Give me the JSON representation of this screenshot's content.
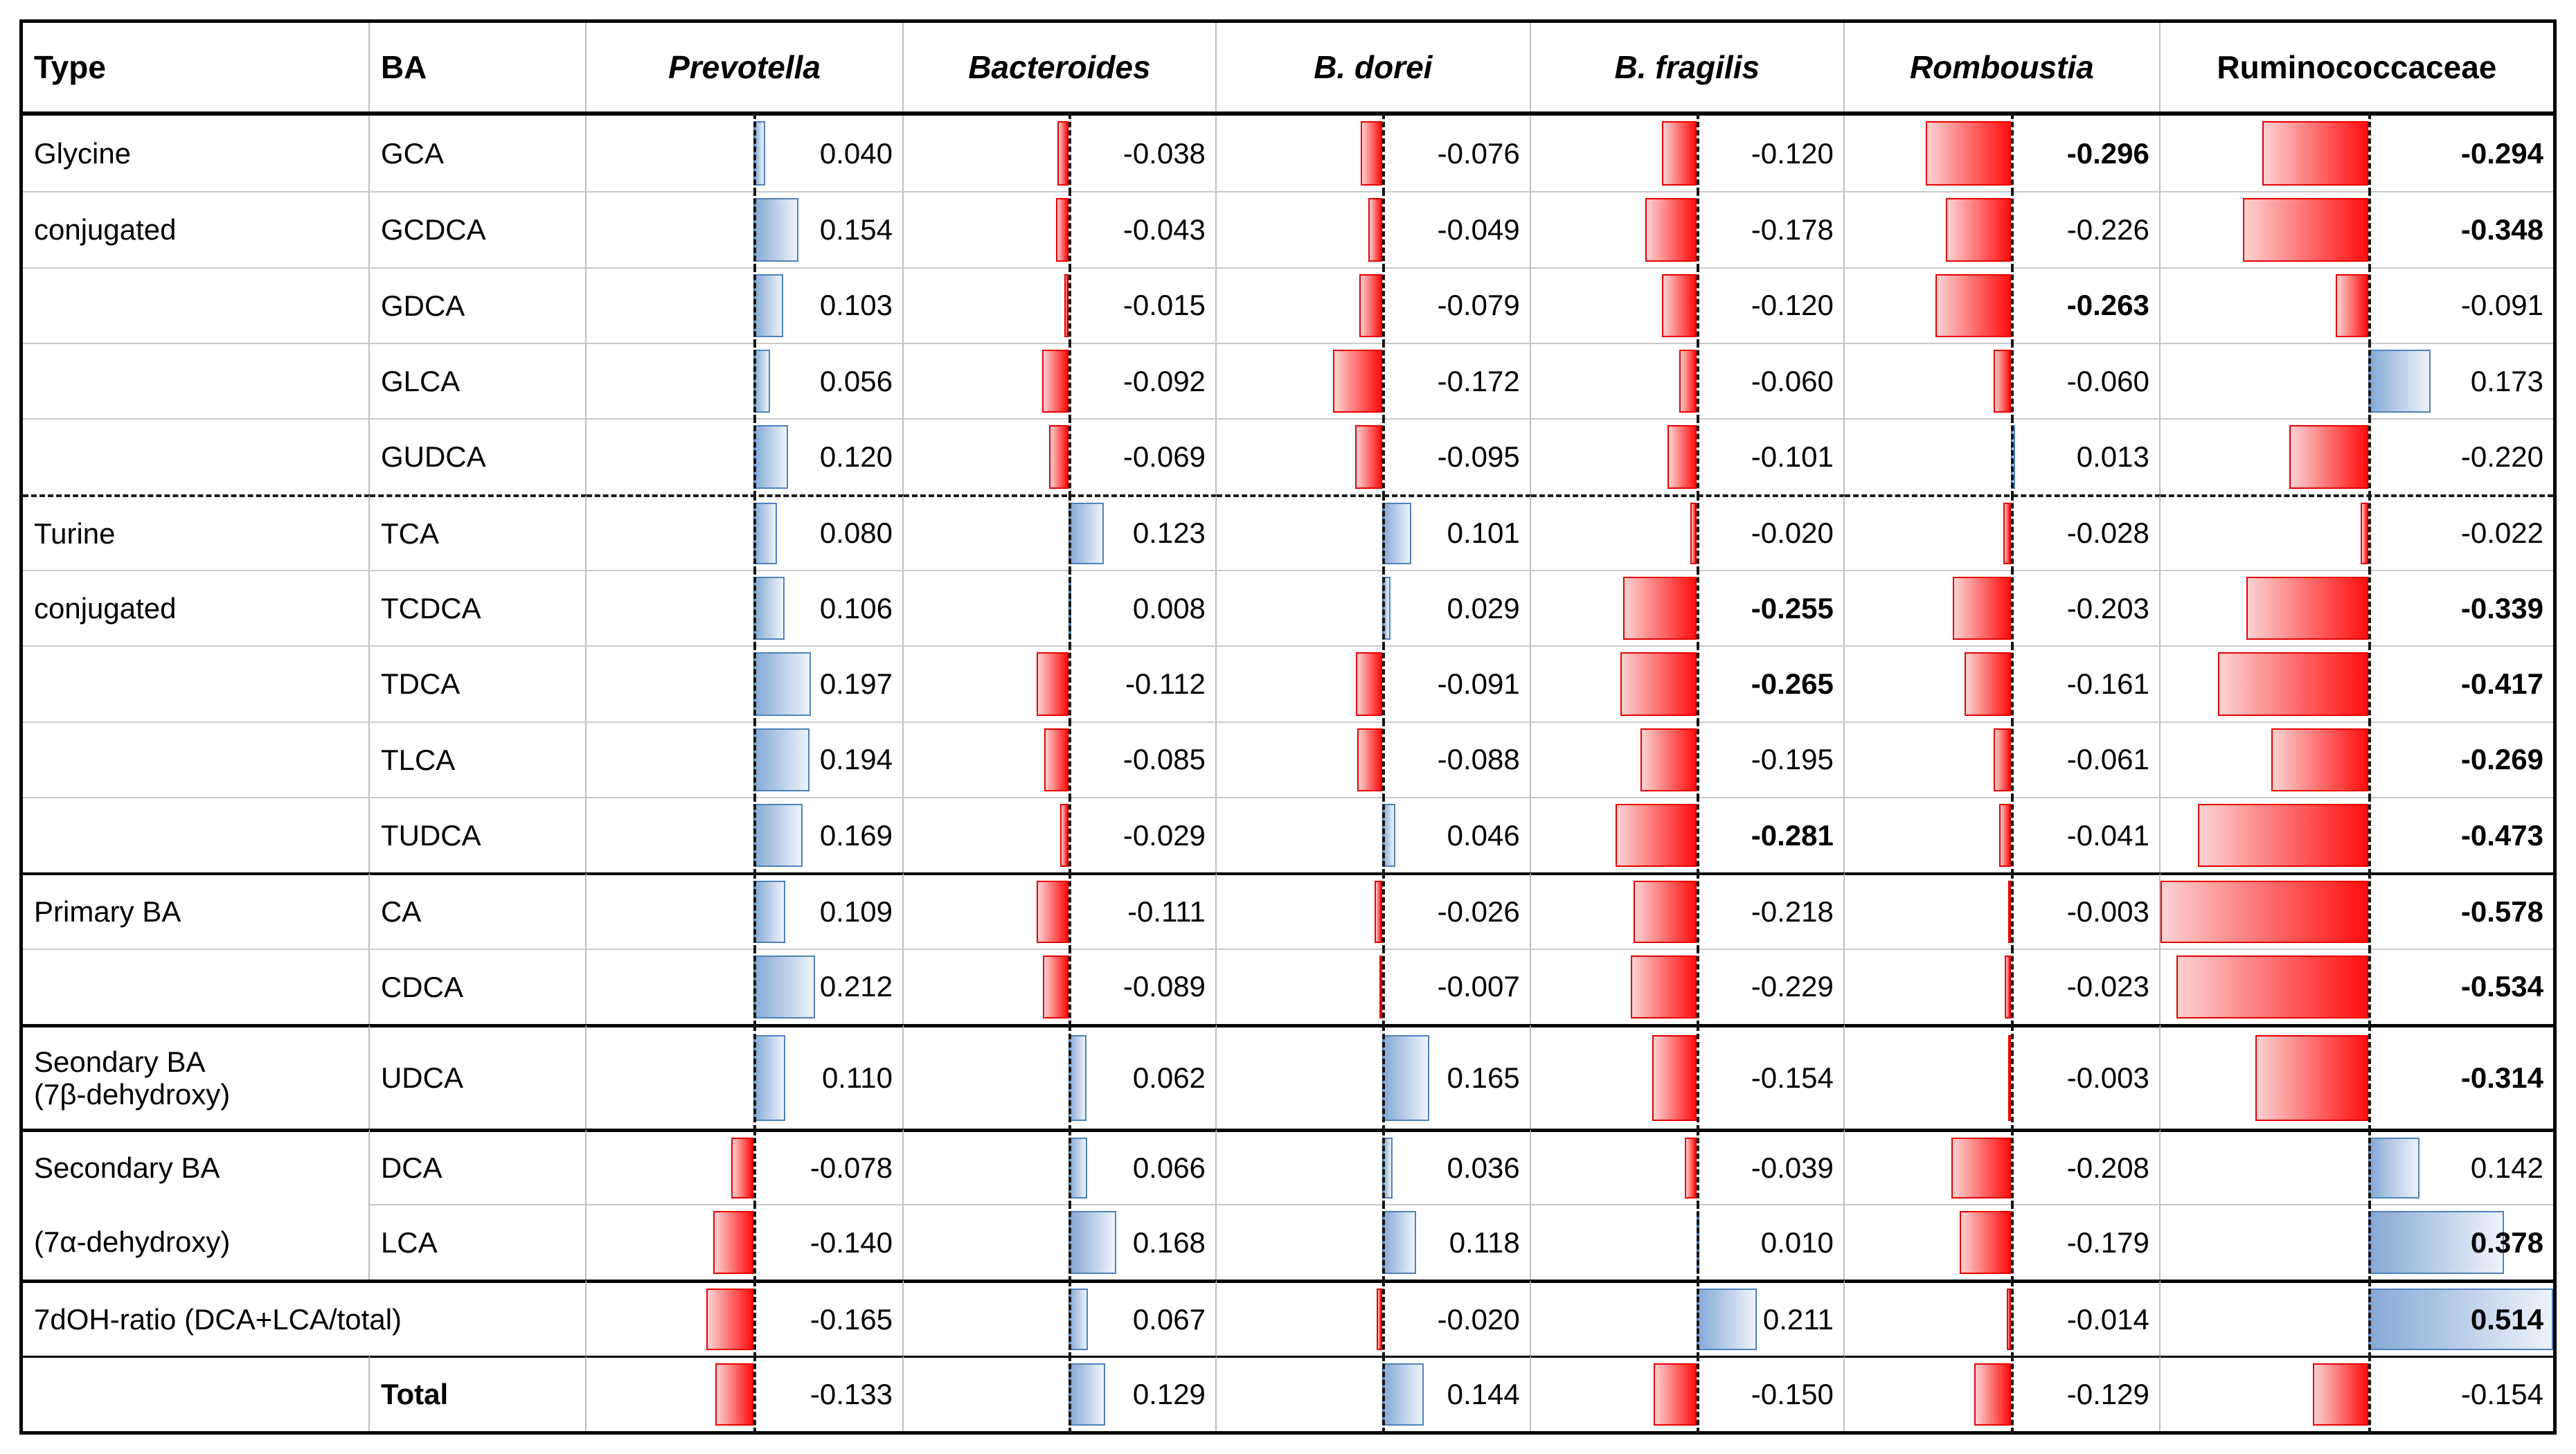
{
  "chart_data": {
    "type": "table",
    "title": "",
    "description": "Correlation table of bile acids vs bacterial taxa with conditional-formatting data bars",
    "corner_headers": [
      "Type",
      "BA"
    ],
    "columns": [
      {
        "label": "Prevotella",
        "italic": true
      },
      {
        "label": "Bacteroides",
        "italic": true
      },
      {
        "label": "B. dorei",
        "italic": true
      },
      {
        "label": "B. fragilis",
        "italic": true
      },
      {
        "label": "Romboustia",
        "italic": true
      },
      {
        "label": "Ruminococcaceae",
        "italic": false
      }
    ],
    "value_range": {
      "min": -0.578,
      "max": 0.514
    },
    "bar_colors": {
      "positive_border": "#4f81bd",
      "positive_fill_start": "#85a9d5",
      "positive_fill_end": "#eef3fb",
      "negative_border": "#e60000",
      "negative_fill_start": "#ff0f0f",
      "negative_fill_end": "#fbd2d2"
    },
    "rows": [
      {
        "type": "Glycine",
        "ba": "GCA",
        "values": [
          "0.040",
          "-0.038",
          "-0.076",
          "-0.120",
          "-0.296",
          "-0.294"
        ],
        "bold": [
          0,
          0,
          0,
          0,
          1,
          1
        ],
        "sep": "none"
      },
      {
        "type": "conjugated",
        "ba": "GCDCA",
        "values": [
          "0.154",
          "-0.043",
          "-0.049",
          "-0.178",
          "-0.226",
          "-0.348"
        ],
        "bold": [
          0,
          0,
          0,
          0,
          0,
          1
        ],
        "sep": "gray"
      },
      {
        "type": "",
        "ba": "GDCA",
        "values": [
          "0.103",
          "-0.015",
          "-0.079",
          "-0.120",
          "-0.263",
          "-0.091"
        ],
        "bold": [
          0,
          0,
          0,
          0,
          1,
          0
        ],
        "sep": "gray"
      },
      {
        "type": "",
        "ba": "GLCA",
        "values": [
          "0.056",
          "-0.092",
          "-0.172",
          "-0.060",
          "-0.060",
          "0.173"
        ],
        "bold": [
          0,
          0,
          0,
          0,
          0,
          0
        ],
        "sep": "gray"
      },
      {
        "type": "",
        "ba": "GUDCA",
        "values": [
          "0.120",
          "-0.069",
          "-0.095",
          "-0.101",
          "0.013",
          "-0.220"
        ],
        "bold": [
          0,
          0,
          0,
          0,
          0,
          0
        ],
        "sep": "gray"
      },
      {
        "type": "Turine",
        "ba": "TCA",
        "values": [
          "0.080",
          "0.123",
          "0.101",
          "-0.020",
          "-0.028",
          "-0.022"
        ],
        "bold": [
          0,
          0,
          0,
          0,
          0,
          0
        ],
        "sep": "dashed"
      },
      {
        "type": "conjugated",
        "ba": "TCDCA",
        "values": [
          "0.106",
          "0.008",
          "0.029",
          "-0.255",
          "-0.203",
          "-0.339"
        ],
        "bold": [
          0,
          0,
          0,
          1,
          0,
          1
        ],
        "sep": "gray"
      },
      {
        "type": "",
        "ba": "TDCA",
        "values": [
          "0.197",
          "-0.112",
          "-0.091",
          "-0.265",
          "-0.161",
          "-0.417"
        ],
        "bold": [
          0,
          0,
          0,
          1,
          0,
          1
        ],
        "sep": "gray"
      },
      {
        "type": "",
        "ba": "TLCA",
        "values": [
          "0.194",
          "-0.085",
          "-0.088",
          "-0.195",
          "-0.061",
          "-0.269"
        ],
        "bold": [
          0,
          0,
          0,
          0,
          0,
          1
        ],
        "sep": "gray"
      },
      {
        "type": "",
        "ba": "TUDCA",
        "values": [
          "0.169",
          "-0.029",
          "0.046",
          "-0.281",
          "-0.041",
          "-0.473"
        ],
        "bold": [
          0,
          0,
          0,
          1,
          0,
          1
        ],
        "sep": "gray"
      },
      {
        "type": "Primary BA",
        "ba": "CA",
        "values": [
          "0.109",
          "-0.111",
          "-0.026",
          "-0.218",
          "-0.003",
          "-0.578"
        ],
        "bold": [
          0,
          0,
          0,
          0,
          0,
          1
        ],
        "sep": "black-md"
      },
      {
        "type": "",
        "ba": "CDCA",
        "values": [
          "0.212",
          "-0.089",
          "-0.007",
          "-0.229",
          "-0.023",
          "-0.534"
        ],
        "bold": [
          0,
          0,
          0,
          0,
          0,
          1
        ],
        "sep": "gray"
      },
      {
        "type": [
          "Seondary BA",
          "(7β-dehydroxy)"
        ],
        "ba": "UDCA",
        "values": [
          "0.110",
          "0.062",
          "0.165",
          "-0.154",
          "-0.003",
          "-0.314"
        ],
        "bold": [
          0,
          0,
          0,
          0,
          0,
          1
        ],
        "sep": "black-thick",
        "tall": true
      },
      {
        "type": "Secondary BA",
        "ba": "DCA",
        "values": [
          "-0.078",
          "0.066",
          "0.036",
          "-0.039",
          "-0.208",
          "0.142"
        ],
        "bold": [
          0,
          0,
          0,
          0,
          0,
          0
        ],
        "sep": "black-thick"
      },
      {
        "type": "(7α-dehydroxy)",
        "ba": "LCA",
        "values": [
          "-0.140",
          "0.168",
          "0.118",
          "0.010",
          "-0.179",
          "0.378"
        ],
        "bold": [
          0,
          0,
          0,
          0,
          0,
          1
        ],
        "sep": "gray",
        "type_no_top": true
      },
      {
        "type": "7dOH-ratio (DCA+LCA/total)",
        "ba": "",
        "values": [
          "-0.165",
          "0.067",
          "-0.020",
          "0.211",
          "-0.014",
          "0.514"
        ],
        "bold": [
          0,
          0,
          0,
          0,
          0,
          1
        ],
        "sep": "black-thick",
        "merge_type_ba": true
      },
      {
        "type": "",
        "ba": "Total",
        "ba_bold": true,
        "values": [
          "-0.133",
          "0.129",
          "0.144",
          "-0.150",
          "-0.129",
          "-0.154"
        ],
        "bold": [
          0,
          0,
          0,
          0,
          0,
          0
        ],
        "sep": "black-thin"
      }
    ]
  }
}
